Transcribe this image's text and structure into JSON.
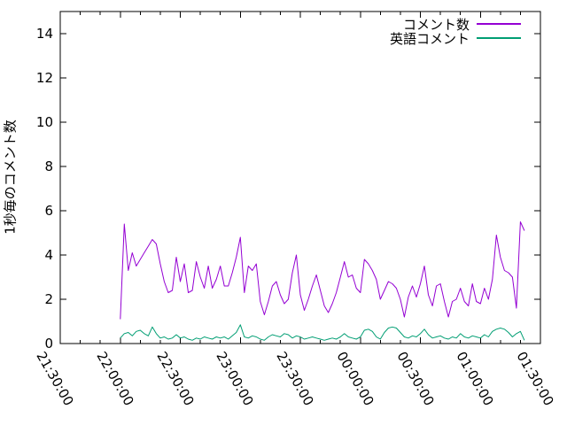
{
  "figure": {
    "background": "#ffffff",
    "border_color": "#000000",
    "text_color": "#000000"
  },
  "chart_data": {
    "type": "line",
    "title": "",
    "xlabel": "",
    "ylabel": "1秒毎のコメント数",
    "ylim": [
      0,
      15
    ],
    "y_ticks": [
      "0",
      "2",
      "4",
      "6",
      "8",
      "10",
      "12",
      "14"
    ],
    "y_tick_values": [
      0,
      2,
      4,
      6,
      8,
      10,
      12,
      14
    ],
    "x_tick_labels": [
      "21:30:00",
      "22:00:00",
      "22:30:00",
      "23:00:00",
      "23:30:00",
      "00:00:00",
      "00:30:00",
      "01:00:00",
      "01:30:00"
    ],
    "x_major_tick_minutes": 30,
    "x_minor_tick_minutes": 10,
    "x_total_minutes": 240,
    "grid": false,
    "legend_position": "top-right",
    "series": [
      {
        "name": "コメント数",
        "color": "#9400d3",
        "x_start_min": 30,
        "x_step_min": 2,
        "values": [
          1.1,
          5.4,
          3.3,
          4.1,
          3.5,
          3.8,
          4.1,
          4.4,
          4.7,
          4.5,
          3.6,
          2.8,
          2.3,
          2.4,
          3.9,
          2.8,
          3.6,
          2.3,
          2.4,
          3.7,
          3.0,
          2.5,
          3.5,
          2.5,
          2.9,
          3.5,
          2.6,
          2.6,
          3.2,
          3.9,
          4.8,
          2.3,
          3.5,
          3.3,
          3.6,
          1.9,
          1.3,
          1.9,
          2.6,
          2.8,
          2.2,
          1.8,
          2.0,
          3.2,
          4.0,
          2.2,
          1.5,
          2.0,
          2.6,
          3.1,
          2.4,
          1.7,
          1.4,
          1.8,
          2.3,
          3.0,
          3.7,
          3.0,
          3.1,
          2.5,
          2.3,
          3.8,
          3.6,
          3.3,
          2.9,
          2.0,
          2.4,
          2.8,
          2.7,
          2.5,
          2.0,
          1.2,
          2.1,
          2.6,
          2.1,
          2.7,
          3.5,
          2.2,
          1.7,
          2.6,
          2.7,
          1.9,
          1.2,
          1.9,
          2.0,
          2.5,
          1.9,
          1.7,
          2.7,
          1.9,
          1.8,
          2.5,
          2.0,
          2.9,
          4.9,
          3.9,
          3.3,
          3.2,
          3.0,
          1.6,
          5.5,
          5.1
        ]
      },
      {
        "name": "英語コメント",
        "color": "#009e73",
        "x_start_min": 30,
        "x_step_min": 2,
        "values": [
          0.25,
          0.45,
          0.5,
          0.35,
          0.55,
          0.6,
          0.45,
          0.35,
          0.75,
          0.45,
          0.25,
          0.3,
          0.2,
          0.25,
          0.4,
          0.25,
          0.3,
          0.2,
          0.15,
          0.25,
          0.2,
          0.3,
          0.25,
          0.2,
          0.3,
          0.25,
          0.3,
          0.2,
          0.35,
          0.5,
          0.85,
          0.3,
          0.25,
          0.35,
          0.3,
          0.2,
          0.15,
          0.3,
          0.4,
          0.35,
          0.3,
          0.45,
          0.4,
          0.25,
          0.35,
          0.3,
          0.2,
          0.25,
          0.3,
          0.25,
          0.2,
          0.15,
          0.2,
          0.25,
          0.2,
          0.3,
          0.45,
          0.3,
          0.25,
          0.2,
          0.3,
          0.6,
          0.65,
          0.55,
          0.3,
          0.2,
          0.5,
          0.7,
          0.75,
          0.7,
          0.5,
          0.3,
          0.25,
          0.35,
          0.3,
          0.45,
          0.65,
          0.4,
          0.25,
          0.3,
          0.35,
          0.25,
          0.2,
          0.3,
          0.25,
          0.45,
          0.3,
          0.25,
          0.35,
          0.3,
          0.25,
          0.4,
          0.3,
          0.55,
          0.65,
          0.7,
          0.65,
          0.5,
          0.3,
          0.45,
          0.55,
          0.15
        ]
      }
    ]
  }
}
